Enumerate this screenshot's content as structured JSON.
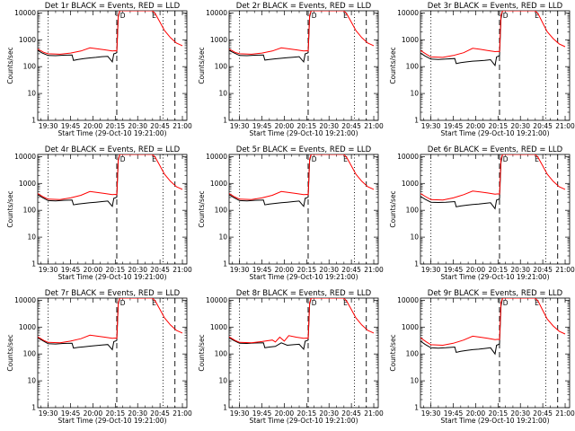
{
  "time_axis": {
    "ticks": [
      "19:30",
      "19:45",
      "20:00",
      "20:15",
      "20:30",
      "20:45",
      "21:00"
    ],
    "tick_minutes_since_19_30": [
      0,
      15,
      30,
      45,
      60,
      75,
      90
    ],
    "xlim_minutes": [
      -7,
      93
    ]
  },
  "y_axis": {
    "scale": "log",
    "ylim": [
      1,
      12000
    ],
    "ticks": [
      "1",
      "10",
      "100",
      "1000",
      "10000"
    ],
    "tick_values": [
      1,
      10,
      100,
      1000,
      10000
    ]
  },
  "vertical_lines": [
    {
      "x": 0,
      "style": "dotted"
    },
    {
      "x": 46,
      "style": "dashed"
    },
    {
      "x": 77,
      "style": "dotted"
    },
    {
      "x": 85,
      "style": "dashed"
    }
  ],
  "markers": [
    {
      "label": "D",
      "x": 50
    },
    {
      "label": "E",
      "x": 71
    }
  ],
  "series_colors": {
    "events": "#000000",
    "lld": "#ff0000"
  },
  "chart_data": [
    {
      "type": "line",
      "title": "Det 1r BLACK = Events, RED = LLD",
      "xlabel": "Start Time (29-Oct-10 19:21:00)",
      "ylabel": "Counts/sec",
      "series": [
        {
          "color": "#000000",
          "x": [
            -7,
            -4,
            0,
            5,
            10,
            16,
            17,
            20,
            24,
            28,
            32,
            36,
            40,
            43,
            44,
            45,
            46,
            47,
            48,
            50,
            52
          ],
          "y": [
            400,
            320,
            260,
            255,
            265,
            270,
            170,
            185,
            200,
            210,
            220,
            235,
            240,
            150,
            300,
            310,
            330,
            7000,
            12000,
            12000,
            12000
          ]
        },
        {
          "color": "#ff0000",
          "x": [
            -7,
            -3,
            0,
            8,
            15,
            22,
            28,
            33,
            38,
            43,
            45,
            46,
            47,
            48,
            50,
            70,
            72,
            75,
            78,
            82,
            86,
            90
          ],
          "y": [
            450,
            340,
            300,
            290,
            320,
            380,
            500,
            460,
            420,
            380,
            390,
            380,
            8000,
            12000,
            12000,
            12000,
            9000,
            4500,
            2200,
            1200,
            750,
            600
          ]
        }
      ]
    },
    {
      "type": "line",
      "title": "Det 2r BLACK = Events, RED = LLD",
      "xlabel": "Start Time (29-Oct-10 19:21:00)",
      "ylabel": "Counts/sec",
      "series": [
        {
          "color": "#000000",
          "x": [
            -7,
            -4,
            0,
            5,
            10,
            16,
            17,
            20,
            24,
            28,
            32,
            36,
            40,
            43,
            44,
            45,
            46,
            47,
            48,
            50,
            52
          ],
          "y": [
            400,
            330,
            260,
            255,
            265,
            270,
            175,
            185,
            195,
            205,
            215,
            225,
            235,
            150,
            300,
            310,
            330,
            7000,
            12000,
            12000,
            12000
          ]
        },
        {
          "color": "#ff0000",
          "x": [
            -7,
            -3,
            0,
            8,
            15,
            22,
            28,
            33,
            38,
            43,
            45,
            46,
            47,
            48,
            50,
            70,
            72,
            75,
            78,
            82,
            86,
            90
          ],
          "y": [
            450,
            340,
            300,
            290,
            320,
            380,
            500,
            460,
            420,
            380,
            390,
            380,
            8000,
            12000,
            12000,
            12000,
            9000,
            4500,
            2200,
            1200,
            750,
            600
          ]
        }
      ]
    },
    {
      "type": "line",
      "title": "Det 3r BLACK = Events, RED = LLD",
      "xlabel": "Start Time (29-Oct-10 19:21:00)",
      "ylabel": "Counts/sec",
      "series": [
        {
          "color": "#000000",
          "x": [
            -7,
            -4,
            0,
            5,
            10,
            16,
            17,
            20,
            24,
            28,
            32,
            36,
            40,
            43,
            44,
            45,
            46,
            47,
            48,
            50,
            52
          ],
          "y": [
            320,
            250,
            190,
            185,
            190,
            200,
            130,
            140,
            150,
            160,
            165,
            170,
            180,
            110,
            230,
            240,
            260,
            6000,
            12000,
            12000,
            12000
          ]
        },
        {
          "color": "#ff0000",
          "x": [
            -7,
            -3,
            0,
            8,
            15,
            22,
            28,
            33,
            38,
            43,
            45,
            46,
            47,
            48,
            50,
            70,
            72,
            75,
            78,
            82,
            86,
            90
          ],
          "y": [
            400,
            290,
            230,
            220,
            260,
            330,
            480,
            440,
            400,
            360,
            370,
            360,
            8000,
            12000,
            12000,
            12000,
            9000,
            4200,
            2000,
            1100,
            700,
            550
          ]
        }
      ]
    },
    {
      "type": "line",
      "title": "Det 4r BLACK = Events, RED = LLD",
      "xlabel": "Start Time (29-Oct-10 19:21:00)",
      "ylabel": "Counts/sec",
      "series": [
        {
          "color": "#000000",
          "x": [
            -7,
            -4,
            0,
            5,
            10,
            16,
            17,
            20,
            24,
            28,
            32,
            36,
            40,
            43,
            44,
            45,
            46,
            47,
            48,
            50,
            52
          ],
          "y": [
            380,
            300,
            230,
            225,
            235,
            240,
            160,
            170,
            180,
            190,
            200,
            210,
            220,
            140,
            280,
            290,
            310,
            7000,
            12000,
            12000,
            12000
          ]
        },
        {
          "color": "#ff0000",
          "x": [
            -7,
            -3,
            0,
            8,
            15,
            22,
            28,
            33,
            38,
            43,
            45,
            46,
            47,
            48,
            50,
            70,
            72,
            75,
            78,
            82,
            86,
            90
          ],
          "y": [
            420,
            310,
            260,
            250,
            290,
            360,
            500,
            460,
            420,
            380,
            390,
            380,
            8000,
            12000,
            12000,
            12000,
            9000,
            4500,
            2200,
            1200,
            750,
            600
          ]
        }
      ]
    },
    {
      "type": "line",
      "title": "Det 5r BLACK = Events, RED = LLD",
      "xlabel": "Start Time (29-Oct-10 19:21:00)",
      "ylabel": "Counts/sec",
      "series": [
        {
          "color": "#000000",
          "x": [
            -7,
            -4,
            0,
            5,
            10,
            16,
            17,
            20,
            24,
            28,
            32,
            36,
            40,
            43,
            44,
            45,
            46,
            47,
            48,
            50,
            52
          ],
          "y": [
            380,
            300,
            230,
            225,
            235,
            240,
            160,
            170,
            180,
            190,
            200,
            210,
            220,
            140,
            280,
            290,
            310,
            7000,
            12000,
            12000,
            12000
          ]
        },
        {
          "color": "#ff0000",
          "x": [
            -7,
            -3,
            0,
            8,
            15,
            22,
            28,
            33,
            38,
            43,
            45,
            46,
            47,
            48,
            50,
            70,
            72,
            75,
            78,
            82,
            86,
            90
          ],
          "y": [
            420,
            310,
            260,
            250,
            290,
            360,
            500,
            460,
            420,
            380,
            390,
            380,
            8000,
            12000,
            12000,
            12000,
            9000,
            4500,
            2200,
            1200,
            750,
            600
          ]
        }
      ]
    },
    {
      "type": "line",
      "title": "Det 6r BLACK = Events, RED = LLD",
      "xlabel": "Start Time (29-Oct-10 19:21:00)",
      "ylabel": "Counts/sec",
      "series": [
        {
          "color": "#000000",
          "x": [
            -7,
            -4,
            0,
            5,
            10,
            16,
            17,
            20,
            24,
            28,
            32,
            36,
            40,
            43,
            44,
            45,
            46,
            47,
            48,
            50,
            52
          ],
          "y": [
            330,
            260,
            200,
            195,
            200,
            210,
            135,
            145,
            155,
            165,
            170,
            180,
            190,
            115,
            240,
            250,
            270,
            6000,
            12000,
            12000,
            12000
          ]
        },
        {
          "color": "#ff0000",
          "x": [
            -7,
            -3,
            0,
            8,
            15,
            22,
            28,
            33,
            38,
            43,
            45,
            46,
            47,
            48,
            50,
            70,
            72,
            75,
            78,
            82,
            86,
            90
          ],
          "y": [
            420,
            310,
            250,
            240,
            290,
            380,
            520,
            480,
            440,
            400,
            410,
            400,
            8000,
            12000,
            12000,
            12000,
            9000,
            4500,
            2200,
            1200,
            750,
            600
          ]
        }
      ]
    },
    {
      "type": "line",
      "title": "Det 7r BLACK = Events, RED = LLD",
      "xlabel": "Start Time (29-Oct-10 19:21:00)",
      "ylabel": "Counts/sec",
      "series": [
        {
          "color": "#000000",
          "x": [
            -7,
            -4,
            0,
            5,
            10,
            16,
            17,
            20,
            24,
            28,
            32,
            36,
            40,
            43,
            44,
            45,
            46,
            47,
            48,
            50,
            52
          ],
          "y": [
            400,
            320,
            240,
            235,
            245,
            250,
            165,
            175,
            185,
            195,
            205,
            215,
            225,
            145,
            290,
            300,
            320,
            7000,
            12000,
            12000,
            12000
          ]
        },
        {
          "color": "#ff0000",
          "x": [
            -7,
            -3,
            0,
            8,
            15,
            22,
            28,
            33,
            38,
            43,
            45,
            46,
            47,
            48,
            50,
            70,
            72,
            75,
            78,
            82,
            86,
            90
          ],
          "y": [
            430,
            320,
            270,
            260,
            300,
            370,
            500,
            460,
            420,
            380,
            390,
            380,
            8000,
            12000,
            12000,
            12000,
            9000,
            4500,
            2200,
            1200,
            750,
            600
          ]
        }
      ]
    },
    {
      "type": "line",
      "title": "Det 8r BLACK = Events, RED = LLD",
      "xlabel": "Start Time (29-Oct-10 19:21:00)",
      "ylabel": "Counts/sec",
      "series": [
        {
          "color": "#000000",
          "x": [
            -7,
            -4,
            0,
            5,
            10,
            16,
            17,
            20,
            24,
            28,
            32,
            36,
            40,
            43,
            44,
            45,
            46,
            47,
            48,
            50,
            52
          ],
          "y": [
            400,
            320,
            250,
            245,
            255,
            260,
            170,
            180,
            190,
            260,
            210,
            220,
            230,
            150,
            300,
            310,
            330,
            7000,
            12000,
            12000,
            12000
          ]
        },
        {
          "color": "#ff0000",
          "x": [
            -7,
            -3,
            0,
            8,
            15,
            22,
            24,
            27,
            30,
            33,
            38,
            43,
            45,
            46,
            47,
            48,
            50,
            70,
            72,
            75,
            78,
            82,
            86,
            90
          ],
          "y": [
            430,
            320,
            270,
            260,
            290,
            330,
            280,
            420,
            300,
            480,
            420,
            380,
            390,
            380,
            8000,
            12000,
            12000,
            12000,
            9000,
            4500,
            2200,
            1200,
            750,
            600
          ]
        }
      ]
    },
    {
      "type": "line",
      "title": "Det 9r BLACK = Events, RED = LLD",
      "xlabel": "Start Time (29-Oct-10 19:21:00)",
      "ylabel": "Counts/sec",
      "series": [
        {
          "color": "#000000",
          "x": [
            -7,
            -4,
            0,
            5,
            10,
            16,
            17,
            20,
            24,
            28,
            32,
            36,
            40,
            43,
            44,
            45,
            46,
            47,
            48,
            50,
            52
          ],
          "y": [
            300,
            230,
            170,
            165,
            170,
            180,
            115,
            125,
            135,
            145,
            150,
            160,
            170,
            100,
            210,
            220,
            240,
            6000,
            12000,
            12000,
            12000
          ]
        },
        {
          "color": "#ff0000",
          "x": [
            -7,
            -3,
            0,
            8,
            15,
            22,
            28,
            33,
            38,
            43,
            45,
            46,
            47,
            48,
            50,
            70,
            72,
            75,
            78,
            82,
            86,
            90
          ],
          "y": [
            400,
            280,
            220,
            210,
            250,
            330,
            460,
            420,
            380,
            340,
            350,
            340,
            8000,
            12000,
            12000,
            12000,
            9000,
            4200,
            2000,
            1100,
            700,
            550
          ]
        }
      ]
    }
  ]
}
